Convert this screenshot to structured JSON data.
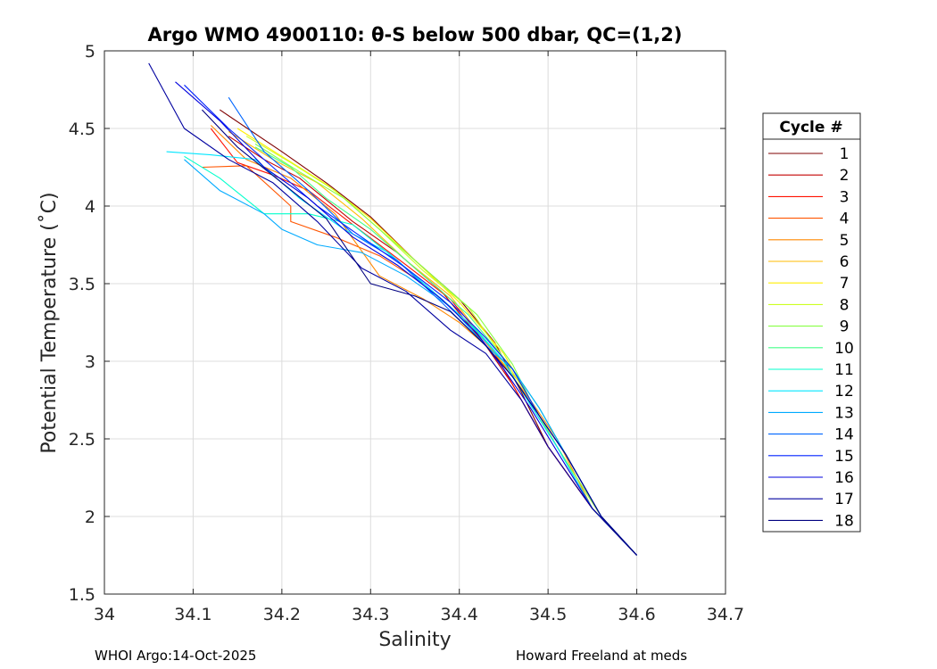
{
  "chart_data": {
    "type": "line",
    "title": "Argo WMO 4900110: θ-S below 500 dbar,  QC=(1,2)",
    "xlabel": "Salinity",
    "ylabel": "Potential Temperature (˚C)",
    "xlim": [
      34,
      34.7
    ],
    "ylim": [
      1.5,
      5
    ],
    "xticks": [
      "34",
      "34.1",
      "34.2",
      "34.3",
      "34.4",
      "34.5",
      "34.6",
      "34.7"
    ],
    "yticks": [
      "1.5",
      "2",
      "2.5",
      "3",
      "3.5",
      "4",
      "4.5",
      "5"
    ],
    "grid": true,
    "legend": {
      "title": "Cycle #",
      "position": "right"
    },
    "series": [
      {
        "name": "1",
        "color": "#7f0000",
        "x": [
          34.13,
          34.2,
          34.25,
          34.3,
          34.35,
          34.4,
          34.44,
          34.47,
          34.5,
          34.55,
          34.6
        ],
        "y": [
          4.62,
          4.35,
          4.15,
          3.93,
          3.65,
          3.4,
          3.12,
          2.8,
          2.45,
          2.05,
          1.75
        ]
      },
      {
        "name": "2",
        "color": "#c40000",
        "x": [
          34.14,
          34.18,
          34.22,
          34.28,
          34.33,
          34.38,
          34.43,
          34.46,
          34.5,
          34.55,
          34.6
        ],
        "y": [
          4.45,
          4.3,
          4.18,
          3.9,
          3.7,
          3.45,
          3.1,
          2.85,
          2.45,
          2.05,
          1.75
        ]
      },
      {
        "name": "3",
        "color": "#ff1100",
        "x": [
          34.12,
          34.15,
          34.19,
          34.23,
          34.28,
          34.34,
          34.39,
          34.44,
          34.47,
          34.5,
          34.55,
          34.6
        ],
        "y": [
          4.5,
          4.28,
          4.2,
          4.1,
          3.88,
          3.62,
          3.4,
          3.05,
          2.75,
          2.45,
          2.05,
          1.75
        ]
      },
      {
        "name": "4",
        "color": "#ff5500",
        "x": [
          34.11,
          34.16,
          34.21,
          34.21,
          34.26,
          34.31,
          34.36,
          34.41,
          34.45,
          34.48,
          34.51,
          34.56,
          34.6
        ],
        "y": [
          4.25,
          4.26,
          4.0,
          3.9,
          3.8,
          3.68,
          3.5,
          3.25,
          3.0,
          2.72,
          2.45,
          2.0,
          1.75
        ]
      },
      {
        "name": "5",
        "color": "#ff8800",
        "x": [
          34.12,
          34.16,
          34.21,
          34.26,
          34.31,
          34.36,
          34.4,
          34.44,
          34.48,
          34.51,
          34.55,
          34.6
        ],
        "y": [
          4.52,
          4.3,
          4.18,
          3.95,
          3.55,
          3.4,
          3.25,
          3.05,
          2.75,
          2.5,
          2.05,
          1.75
        ]
      },
      {
        "name": "6",
        "color": "#ffbb00",
        "x": [
          34.14,
          34.19,
          34.24,
          34.29,
          34.34,
          34.39,
          34.44,
          34.47,
          34.51,
          34.55,
          34.6
        ],
        "y": [
          4.48,
          4.3,
          4.15,
          3.92,
          3.65,
          3.42,
          3.05,
          2.85,
          2.45,
          2.05,
          1.75
        ]
      },
      {
        "name": "7",
        "color": "#ffee00",
        "x": [
          34.15,
          34.2,
          34.25,
          34.3,
          34.35,
          34.4,
          34.45,
          34.48,
          34.51,
          34.56,
          34.6
        ],
        "y": [
          4.5,
          4.32,
          4.14,
          3.92,
          3.65,
          3.38,
          3.05,
          2.75,
          2.45,
          2.0,
          1.75
        ]
      },
      {
        "name": "8",
        "color": "#ccff22",
        "x": [
          34.16,
          34.21,
          34.26,
          34.31,
          34.36,
          34.41,
          34.45,
          34.48,
          34.51,
          34.56,
          34.6
        ],
        "y": [
          4.45,
          4.28,
          4.1,
          3.85,
          3.58,
          3.35,
          3.02,
          2.75,
          2.45,
          2.0,
          1.75
        ]
      },
      {
        "name": "9",
        "color": "#88ff44",
        "x": [
          34.17,
          34.22,
          34.27,
          34.32,
          34.37,
          34.42,
          34.46,
          34.48,
          34.51,
          34.56,
          34.6
        ],
        "y": [
          4.4,
          4.22,
          4.05,
          3.8,
          3.55,
          3.3,
          2.98,
          2.75,
          2.45,
          2.0,
          1.75
        ]
      },
      {
        "name": "10",
        "color": "#44ff88",
        "x": [
          34.17,
          34.21,
          34.25,
          34.3,
          34.35,
          34.37,
          34.41,
          34.46,
          34.49,
          34.52,
          34.56,
          34.6
        ],
        "y": [
          4.38,
          4.25,
          4.05,
          3.85,
          3.6,
          3.5,
          3.3,
          2.95,
          2.7,
          2.4,
          2.0,
          1.75
        ]
      },
      {
        "name": "11",
        "color": "#00ffcc",
        "x": [
          34.09,
          34.13,
          34.18,
          34.23,
          34.28,
          34.33,
          34.38,
          34.42,
          34.45,
          34.48,
          34.51,
          34.55,
          34.6
        ],
        "y": [
          4.32,
          4.18,
          3.95,
          3.95,
          3.88,
          3.65,
          3.4,
          3.2,
          3.0,
          2.72,
          2.45,
          2.05,
          1.75
        ]
      },
      {
        "name": "12",
        "color": "#00e6ff",
        "x": [
          34.07,
          34.12,
          34.17,
          34.22,
          34.27,
          34.32,
          34.37,
          34.41,
          34.45,
          34.48,
          34.51,
          34.55,
          34.6
        ],
        "y": [
          4.35,
          4.33,
          4.3,
          4.05,
          3.85,
          3.7,
          3.45,
          3.25,
          3.0,
          2.72,
          2.45,
          2.05,
          1.75
        ]
      },
      {
        "name": "13",
        "color": "#00aaff",
        "x": [
          34.09,
          34.13,
          34.18,
          34.2,
          34.24,
          34.29,
          34.34,
          34.39,
          34.43,
          34.46,
          34.49,
          34.52,
          34.56,
          34.6
        ],
        "y": [
          4.3,
          4.1,
          3.95,
          3.85,
          3.75,
          3.7,
          3.55,
          3.35,
          3.1,
          2.95,
          2.7,
          2.4,
          2.0,
          1.75
        ]
      },
      {
        "name": "14",
        "color": "#0066ff",
        "x": [
          34.14,
          34.18,
          34.23,
          34.28,
          34.33,
          34.38,
          34.43,
          34.46,
          34.49,
          34.52,
          34.56,
          34.6
        ],
        "y": [
          4.7,
          4.35,
          4.1,
          3.82,
          3.65,
          3.38,
          3.1,
          2.9,
          2.65,
          2.4,
          2.0,
          1.75
        ]
      },
      {
        "name": "15",
        "color": "#0022ff",
        "x": [
          34.09,
          34.14,
          34.19,
          34.24,
          34.29,
          34.34,
          34.39,
          34.43,
          34.46,
          34.49,
          34.52,
          34.56,
          34.6
        ],
        "y": [
          4.78,
          4.5,
          4.25,
          4.0,
          3.8,
          3.6,
          3.38,
          3.15,
          2.95,
          2.65,
          2.4,
          2.0,
          1.75
        ]
      },
      {
        "name": "16",
        "color": "#0000dd",
        "x": [
          34.08,
          34.13,
          34.18,
          34.23,
          34.28,
          34.33,
          34.38,
          34.42,
          34.45,
          34.48,
          34.51,
          34.55,
          34.6
        ],
        "y": [
          4.8,
          4.55,
          4.25,
          4.05,
          3.8,
          3.62,
          3.4,
          3.18,
          2.95,
          2.7,
          2.42,
          2.05,
          1.75
        ]
      },
      {
        "name": "17",
        "color": "#00009f",
        "x": [
          34.05,
          34.09,
          34.14,
          34.19,
          34.24,
          34.29,
          34.34,
          34.39,
          34.43,
          34.47,
          34.5,
          34.55,
          34.6
        ],
        "y": [
          4.92,
          4.5,
          4.3,
          4.15,
          3.9,
          3.6,
          3.45,
          3.2,
          3.05,
          2.75,
          2.45,
          2.05,
          1.75
        ]
      },
      {
        "name": "18",
        "color": "#000080",
        "x": [
          34.11,
          34.15,
          34.2,
          34.25,
          34.3,
          34.35,
          34.39,
          34.43,
          34.46,
          34.49,
          34.52,
          34.56,
          34.6
        ],
        "y": [
          4.62,
          4.38,
          4.15,
          3.92,
          3.5,
          3.42,
          3.32,
          3.1,
          2.9,
          2.65,
          2.4,
          2.0,
          1.75
        ]
      }
    ]
  },
  "footer": {
    "left": "WHOI Argo:14-Oct-2025",
    "right": "Howard Freeland at meds"
  }
}
